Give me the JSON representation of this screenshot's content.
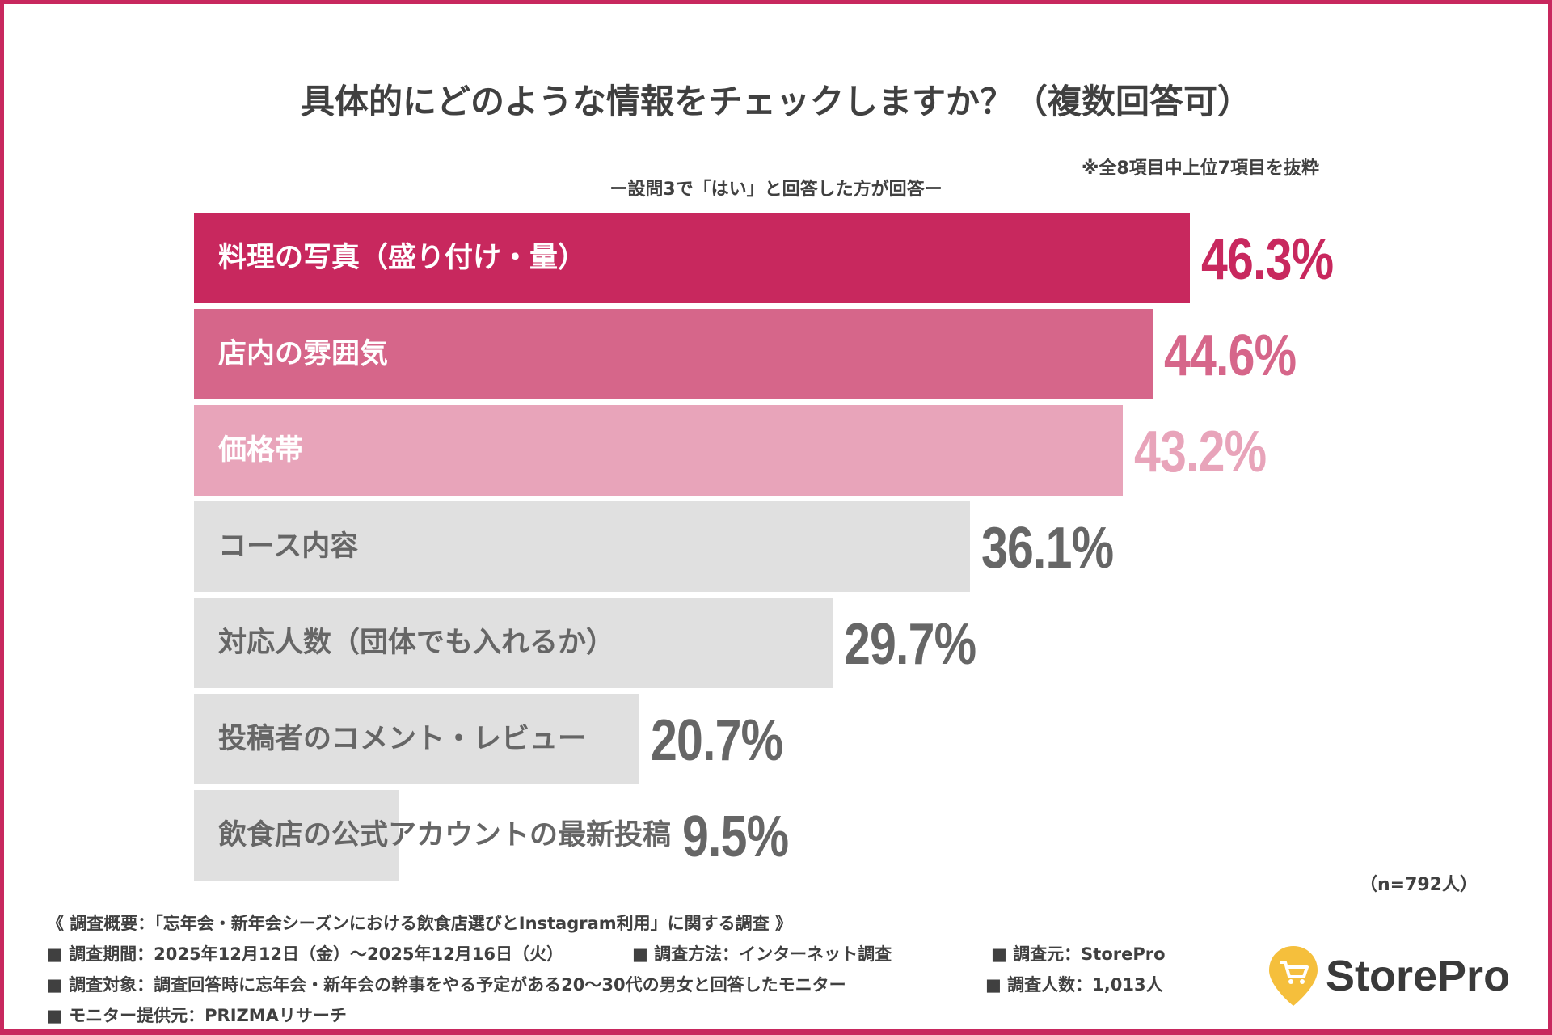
{
  "chart_data": {
    "type": "bar",
    "orientation": "horizontal",
    "title": "具体的にどのような情報をチェックしますか？（複数回答可）",
    "subtitle": "ー設問3で「はい」と回答した方が回答ー",
    "note": "※全8項目中上位7項目を抜粋",
    "sample": "（n=792人）",
    "categories": [
      "料理の写真（盛り付け・量）",
      "店内の雰囲気",
      "価格帯",
      "コース内容",
      "対応人数（団体でも入れるか）",
      "投稿者のコメント・レビュー",
      "飲食店の公式アカウントの最新投稿"
    ],
    "values": [
      46.3,
      44.6,
      43.2,
      36.1,
      29.7,
      20.7,
      9.5
    ],
    "value_labels": [
      "46.3%",
      "44.6%",
      "43.2%",
      "36.1%",
      "29.7%",
      "20.7%",
      "9.5%"
    ],
    "bar_colors": [
      "#c8285e",
      "#d6668a",
      "#e8a4ba",
      "#e0e0e0",
      "#e0e0e0",
      "#e0e0e0",
      "#e0e0e0"
    ],
    "label_colors": [
      "#ffffff",
      "#ffffff",
      "#ffffff",
      "#666666",
      "#666666",
      "#666666",
      "#666666"
    ],
    "value_colors": [
      "#c8285e",
      "#d6668a",
      "#e8a4ba",
      "#666666",
      "#666666",
      "#666666",
      "#666666"
    ],
    "grid": false
  },
  "footer": {
    "overview": "《 調査概要：「忘年会・新年会シーズンにおける飲食店選びとInstagram利用」に関する調査 》",
    "period": "■ 調査期間：2025年12月12日（金）〜2025年12月16日（火）",
    "method": "■ 調査方法：インターネット調査",
    "source": "■ 調査元：StorePro",
    "target": "■ 調査対象：調査回答時に忘年会・新年会の幹事をやる予定がある20〜30代の男女と回答したモニター",
    "count": "■ 調査人数：1,013人",
    "provider": "■ モニター提供元：PRIZMAリサーチ"
  },
  "logo": {
    "text": "StorePro",
    "color": "#f5bf3c"
  }
}
